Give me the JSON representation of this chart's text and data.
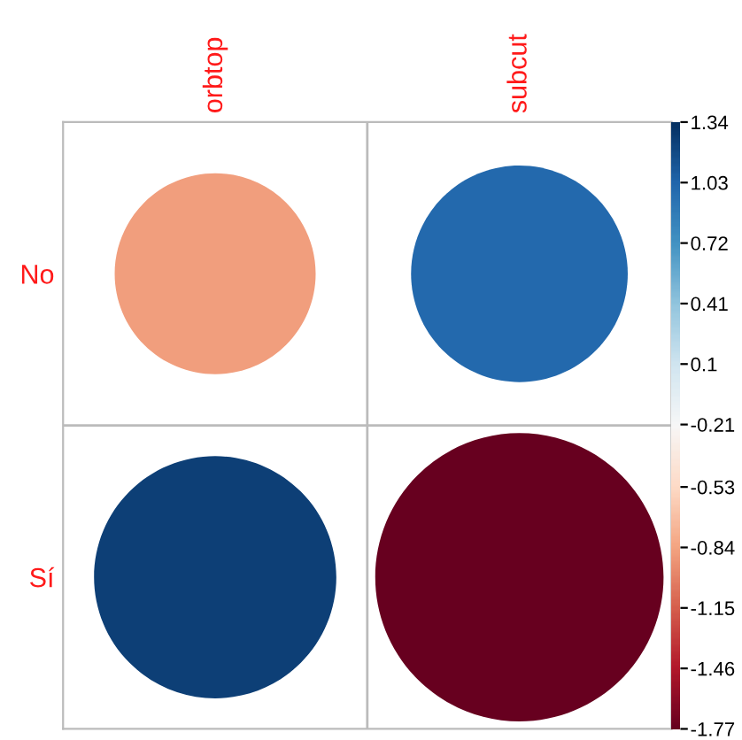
{
  "chart_data": {
    "type": "heatmap",
    "categories": [
      "orbtop",
      "subcut"
    ],
    "y_categories": [
      "No",
      "Sí"
    ],
    "cells": [
      [
        -0.86,
        1.0
      ],
      [
        1.25,
        -1.77
      ]
    ],
    "clim": [
      -1.77,
      1.34
    ],
    "cticks": [
      1.34,
      1.03,
      0.72,
      0.41,
      0.1,
      -0.21,
      -0.53,
      -0.84,
      -1.15,
      -1.46,
      -1.77
    ],
    "grid": true
  }
}
